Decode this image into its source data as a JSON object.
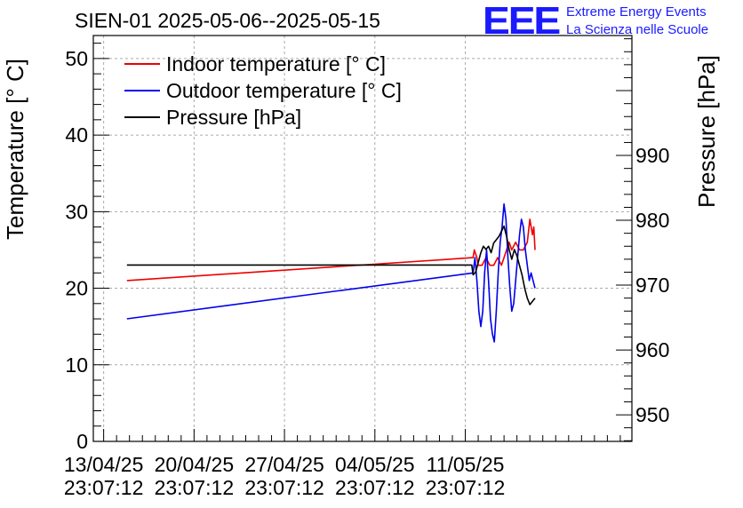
{
  "title": "SIEN-01 2025-05-06--2025-05-15",
  "logo": {
    "mark": "EEE",
    "line1": "Extreme Energy Events",
    "line2": "La Scienza nelle Scuole",
    "color": "#1a1aff"
  },
  "chart_data": {
    "type": "line",
    "title": "SIEN-01 2025-05-06--2025-05-15",
    "ylabel": "Temperature [° C]",
    "y2label": "Pressure [hPa]",
    "ylim": [
      0,
      53
    ],
    "y2lim": [
      945.9,
      1008.5
    ],
    "xlim": [
      -0.8,
      40.9
    ],
    "x_unit": "days since 13/04/25 23:07:12",
    "yticks": [
      0,
      10,
      20,
      30,
      40,
      50
    ],
    "y2ticks": [
      950,
      960,
      970,
      980,
      990
    ],
    "xtick_values": [
      0,
      7,
      14,
      21,
      28
    ],
    "xtick_labels": [
      [
        "13/04/25",
        "23:07:12"
      ],
      [
        "20/04/25",
        "23:07:12"
      ],
      [
        "27/04/25",
        "23:07:12"
      ],
      [
        "04/05/25",
        "23:07:12"
      ],
      [
        "11/05/25",
        "23:07:12"
      ]
    ],
    "grid": true,
    "legend_position": "top-left",
    "series": [
      {
        "name": "Indoor temperature [° C]",
        "axis": "left",
        "color": "#ee0000",
        "x": [
          1.8,
          28.6,
          28.7,
          28.9,
          29.0,
          29.3,
          29.6,
          29.9,
          30.2,
          30.5,
          30.8,
          31.0,
          31.2,
          31.4,
          31.6,
          31.9,
          32.2,
          32.5,
          32.8,
          33.0,
          33.2,
          33.3,
          33.4
        ],
        "values": [
          21,
          24,
          25,
          24,
          23,
          23,
          24,
          23,
          23,
          24,
          23,
          24,
          25,
          26,
          25,
          26,
          25,
          25,
          26,
          29,
          27,
          28,
          25
        ]
      },
      {
        "name": "Outdoor temperature [° C]",
        "axis": "left",
        "color": "#0000ee",
        "x": [
          1.8,
          28.6,
          28.75,
          28.9,
          29.05,
          29.2,
          29.35,
          29.5,
          29.65,
          29.8,
          29.95,
          30.1,
          30.25,
          30.4,
          30.55,
          30.7,
          30.85,
          31.0,
          31.15,
          31.3,
          31.45,
          31.6,
          31.75,
          31.9,
          32.05,
          32.2,
          32.35,
          32.5,
          32.65,
          32.8,
          32.95,
          33.1,
          33.25,
          33.4
        ],
        "values": [
          16,
          22,
          24,
          21,
          17,
          15,
          17,
          22,
          25,
          21,
          16,
          14,
          13,
          17,
          22,
          26,
          28,
          31,
          29,
          24,
          20,
          17,
          18,
          21,
          24,
          27,
          29,
          28,
          25,
          23,
          21,
          22,
          21,
          20
        ]
      },
      {
        "name": "Pressure [hPa]",
        "axis": "right",
        "color": "#000000",
        "x": [
          1.8,
          28.5,
          28.6,
          28.8,
          29.0,
          29.2,
          29.4,
          29.6,
          29.8,
          30.0,
          30.2,
          30.4,
          30.6,
          30.8,
          31.0,
          31.2,
          31.4,
          31.6,
          31.8,
          32.0,
          32.2,
          32.4,
          32.6,
          32.8,
          33.0,
          33.2,
          33.4
        ],
        "values": [
          973.1,
          973.1,
          971.6,
          972.0,
          973.5,
          975.0,
          976.0,
          975.5,
          976.0,
          975.0,
          976.5,
          977.0,
          977.5,
          978.3,
          979.1,
          977.5,
          975.5,
          974.0,
          975.5,
          974.5,
          973.0,
          971.5,
          969.5,
          968.0,
          967.0,
          967.5,
          968.0
        ]
      }
    ]
  }
}
